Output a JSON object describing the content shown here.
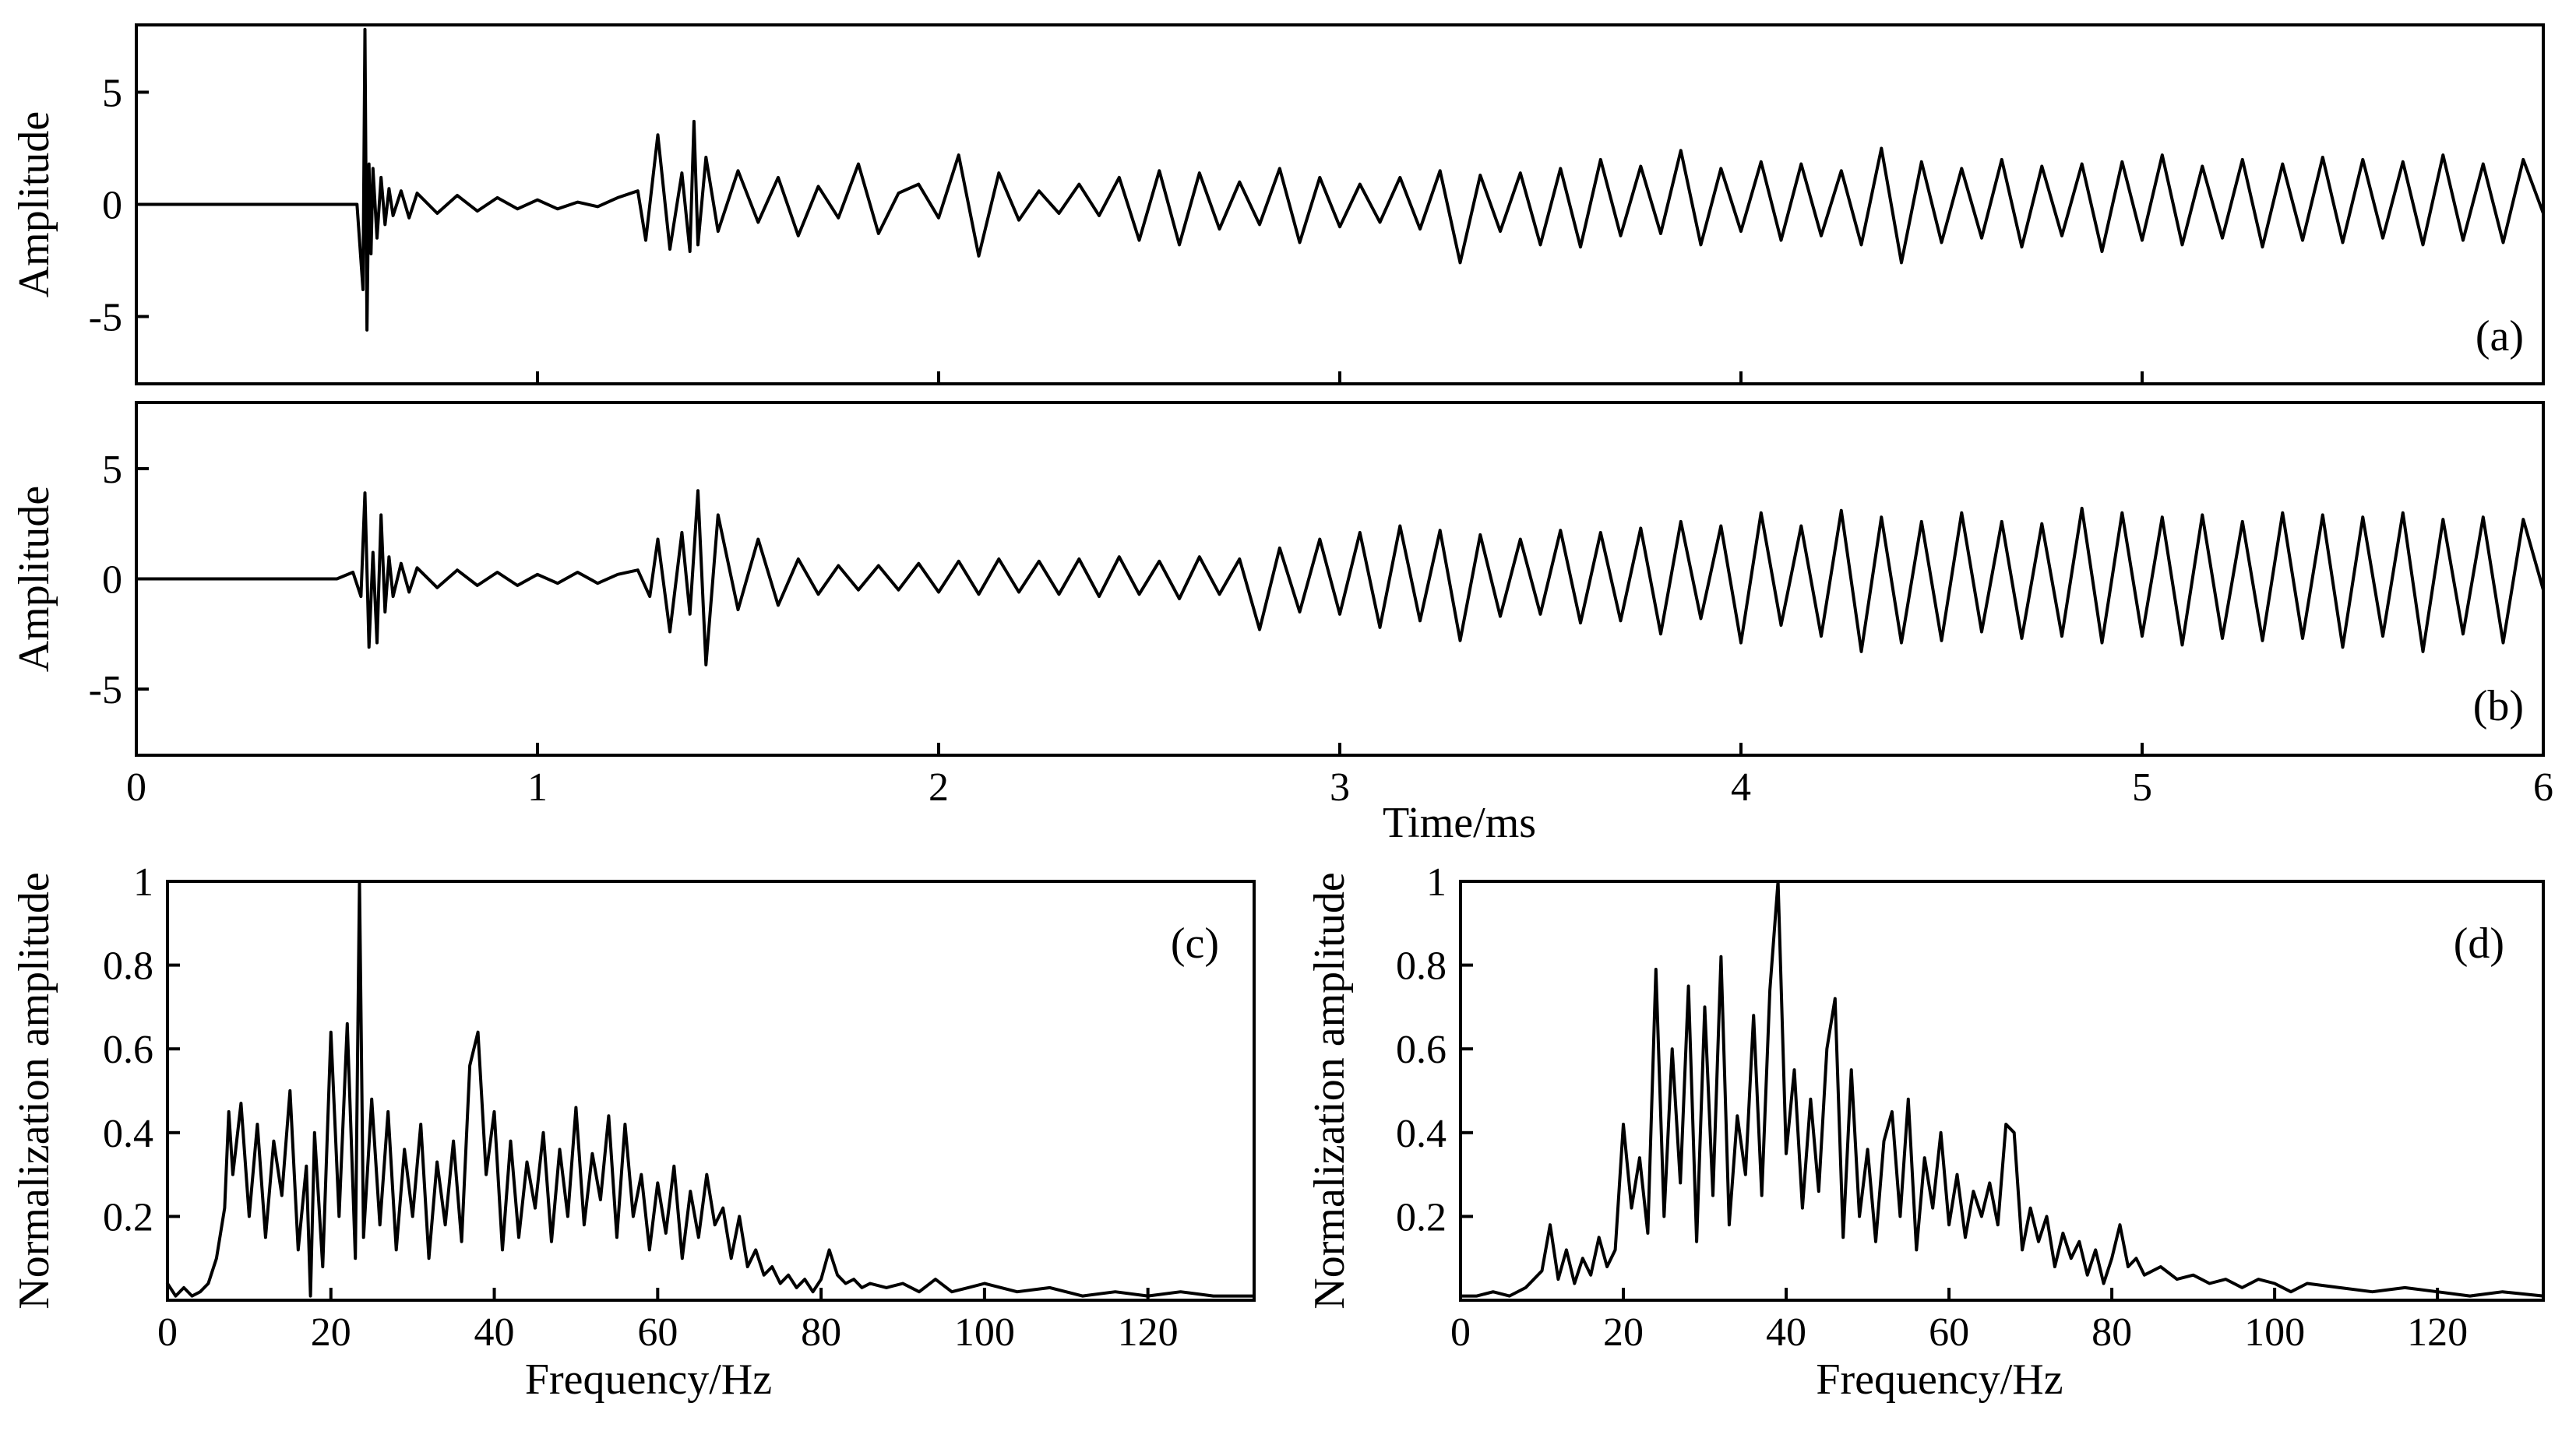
{
  "chart_data": [
    {
      "id": "a",
      "type": "line",
      "panel_label": "(a)",
      "ylabel": "Amplitude",
      "xlabel": "",
      "xlim": [
        0,
        6
      ],
      "ylim": [
        -8,
        8
      ],
      "x_ticks": [
        1,
        2,
        3,
        4,
        5
      ],
      "x_tick_labels": [],
      "y_ticks": [
        5,
        0,
        -5
      ],
      "y_tick_labels": [
        "5",
        "0",
        "-5"
      ],
      "legend": "none",
      "grid": false,
      "series": [
        {
          "x": [
            0.0,
            0.2,
            0.4,
            0.55,
            0.565,
            0.57,
            0.575,
            0.58,
            0.585,
            0.59,
            0.6,
            0.61,
            0.62,
            0.63,
            0.64,
            0.66,
            0.68,
            0.7,
            0.75,
            0.8,
            0.85,
            0.9,
            0.95,
            1.0,
            1.05,
            1.1,
            1.15,
            1.2,
            1.25,
            1.27,
            1.3,
            1.33,
            1.36,
            1.38,
            1.39,
            1.4,
            1.42,
            1.45,
            1.5,
            1.55,
            1.6,
            1.65,
            1.7,
            1.75,
            1.8,
            1.85,
            1.9,
            1.95,
            2.0,
            2.05,
            2.1,
            2.15,
            2.2,
            2.25,
            2.3,
            2.35,
            2.4,
            2.45,
            2.5,
            2.55,
            2.6,
            2.65,
            2.7,
            2.75,
            2.8,
            2.85,
            2.9,
            2.95,
            3.0,
            3.05,
            3.1,
            3.15,
            3.2,
            3.25,
            3.3,
            3.35,
            3.4,
            3.45,
            3.5,
            3.55,
            3.6,
            3.65,
            3.7,
            3.75,
            3.8,
            3.85,
            3.9,
            3.95,
            4.0,
            4.05,
            4.1,
            4.15,
            4.2,
            4.25,
            4.3,
            4.35,
            4.4,
            4.45,
            4.5,
            4.55,
            4.6,
            4.65,
            4.7,
            4.75,
            4.8,
            4.85,
            4.9,
            4.95,
            5.0,
            5.05,
            5.1,
            5.15,
            5.2,
            5.25,
            5.3,
            5.35,
            5.4,
            5.45,
            5.5,
            5.55,
            5.6,
            5.65,
            5.7,
            5.75,
            5.8,
            5.85,
            5.9,
            5.95,
            6.0
          ],
          "y": [
            0,
            0,
            0,
            0,
            -3.8,
            7.8,
            -5.6,
            1.8,
            -2.2,
            1.6,
            -1.5,
            1.2,
            -0.9,
            0.7,
            -0.5,
            0.6,
            -0.6,
            0.5,
            -0.4,
            0.4,
            -0.3,
            0.3,
            -0.2,
            0.2,
            -0.2,
            0.1,
            -0.1,
            0.3,
            0.6,
            -1.6,
            3.1,
            -2.0,
            1.4,
            -2.1,
            3.7,
            -1.8,
            2.1,
            -1.2,
            1.5,
            -0.8,
            1.2,
            -1.4,
            0.8,
            -0.6,
            1.8,
            -1.3,
            0.5,
            0.9,
            -0.6,
            2.2,
            -2.3,
            1.4,
            -0.7,
            0.6,
            -0.4,
            0.9,
            -0.5,
            1.2,
            -1.6,
            1.5,
            -1.8,
            1.4,
            -1.1,
            1.0,
            -0.9,
            1.6,
            -1.7,
            1.2,
            -1.0,
            0.9,
            -0.8,
            1.2,
            -1.1,
            1.5,
            -2.6,
            1.3,
            -1.2,
            1.4,
            -1.8,
            1.6,
            -1.9,
            2.0,
            -1.4,
            1.7,
            -1.3,
            2.4,
            -1.8,
            1.6,
            -1.2,
            1.9,
            -1.6,
            1.8,
            -1.4,
            1.5,
            -1.8,
            2.5,
            -2.6,
            1.9,
            -1.7,
            1.6,
            -1.5,
            2.0,
            -1.9,
            1.7,
            -1.4,
            1.8,
            -2.1,
            1.9,
            -1.6,
            2.2,
            -1.8,
            1.7,
            -1.5,
            2.0,
            -1.9,
            1.8,
            -1.6,
            2.1,
            -1.7,
            2.0,
            -1.5,
            1.9,
            -1.8,
            2.2,
            -1.6,
            1.8,
            -1.7,
            2.0,
            -0.4
          ]
        }
      ]
    },
    {
      "id": "b",
      "type": "line",
      "panel_label": "(b)",
      "ylabel": "Amplitude",
      "xlabel": "Time/ms",
      "xlim": [
        0,
        6
      ],
      "ylim": [
        -8,
        8
      ],
      "x_ticks": [
        0,
        1,
        2,
        3,
        4,
        5,
        6
      ],
      "x_tick_labels": [
        "0",
        "1",
        "2",
        "3",
        "4",
        "5",
        "6"
      ],
      "y_ticks": [
        5,
        0,
        -5
      ],
      "y_tick_labels": [
        "5",
        "0",
        "-5"
      ],
      "legend": "none",
      "grid": false,
      "series": [
        {
          "x": [
            0.0,
            0.2,
            0.4,
            0.5,
            0.54,
            0.56,
            0.57,
            0.58,
            0.59,
            0.6,
            0.61,
            0.62,
            0.63,
            0.64,
            0.66,
            0.68,
            0.7,
            0.75,
            0.8,
            0.85,
            0.9,
            0.95,
            1.0,
            1.05,
            1.1,
            1.15,
            1.2,
            1.25,
            1.28,
            1.3,
            1.33,
            1.36,
            1.38,
            1.4,
            1.42,
            1.45,
            1.5,
            1.55,
            1.6,
            1.65,
            1.7,
            1.75,
            1.8,
            1.85,
            1.9,
            1.95,
            2.0,
            2.05,
            2.1,
            2.15,
            2.2,
            2.25,
            2.3,
            2.35,
            2.4,
            2.45,
            2.5,
            2.55,
            2.6,
            2.65,
            2.7,
            2.75,
            2.8,
            2.85,
            2.9,
            2.95,
            3.0,
            3.05,
            3.1,
            3.15,
            3.2,
            3.25,
            3.3,
            3.35,
            3.4,
            3.45,
            3.5,
            3.55,
            3.6,
            3.65,
            3.7,
            3.75,
            3.8,
            3.85,
            3.9,
            3.95,
            4.0,
            4.05,
            4.1,
            4.15,
            4.2,
            4.25,
            4.3,
            4.35,
            4.4,
            4.45,
            4.5,
            4.55,
            4.6,
            4.65,
            4.7,
            4.75,
            4.8,
            4.85,
            4.9,
            4.95,
            5.0,
            5.05,
            5.1,
            5.15,
            5.2,
            5.25,
            5.3,
            5.35,
            5.4,
            5.45,
            5.5,
            5.55,
            5.6,
            5.65,
            5.7,
            5.75,
            5.8,
            5.85,
            5.9,
            5.95,
            6.0
          ],
          "y": [
            0,
            0,
            0,
            0,
            0.3,
            -0.8,
            3.9,
            -3.1,
            1.2,
            -2.9,
            2.9,
            -1.5,
            1.0,
            -0.8,
            0.7,
            -0.6,
            0.5,
            -0.4,
            0.4,
            -0.3,
            0.3,
            -0.3,
            0.2,
            -0.2,
            0.3,
            -0.2,
            0.2,
            0.4,
            -0.8,
            1.8,
            -2.4,
            2.1,
            -1.6,
            4.0,
            -3.9,
            2.9,
            -1.4,
            1.8,
            -1.2,
            0.9,
            -0.7,
            0.6,
            -0.5,
            0.6,
            -0.5,
            0.7,
            -0.6,
            0.8,
            -0.7,
            0.9,
            -0.6,
            0.8,
            -0.7,
            0.9,
            -0.8,
            1.0,
            -0.7,
            0.8,
            -0.9,
            1.0,
            -0.7,
            0.9,
            -2.3,
            1.4,
            -1.5,
            1.8,
            -1.6,
            2.1,
            -2.2,
            2.4,
            -1.9,
            2.2,
            -2.8,
            2.0,
            -1.7,
            1.8,
            -1.6,
            2.2,
            -2.0,
            2.1,
            -1.9,
            2.3,
            -2.5,
            2.6,
            -1.8,
            2.4,
            -2.9,
            3.0,
            -2.1,
            2.4,
            -2.6,
            3.1,
            -3.3,
            2.8,
            -2.9,
            2.6,
            -2.8,
            3.0,
            -2.4,
            2.6,
            -2.7,
            2.5,
            -2.6,
            3.2,
            -2.9,
            3.0,
            -2.6,
            2.8,
            -3.0,
            2.9,
            -2.7,
            2.6,
            -2.8,
            3.0,
            -2.7,
            2.9,
            -3.1,
            2.8,
            -2.6,
            3.0,
            -3.3,
            2.7,
            -2.5,
            2.8,
            -2.9,
            2.7,
            -0.5
          ]
        }
      ]
    },
    {
      "id": "c",
      "type": "line",
      "panel_label": "(c)",
      "xlabel": "Frequency/Hz",
      "ylabel": "Normalization amplitude",
      "xlim": [
        0,
        133
      ],
      "ylim": [
        0,
        1
      ],
      "x_ticks": [
        0,
        20,
        40,
        60,
        80,
        100,
        120
      ],
      "x_tick_labels": [
        "0",
        "20",
        "40",
        "60",
        "80",
        "100",
        "120"
      ],
      "y_ticks": [
        0.2,
        0.4,
        0.6,
        0.8,
        1
      ],
      "y_tick_labels": [
        "0.2",
        "0.4",
        "0.6",
        "0.8",
        "1"
      ],
      "legend": "none",
      "grid": false,
      "series": [
        {
          "x": [
            0,
            1,
            2,
            3,
            4,
            5,
            6,
            7,
            7.5,
            8,
            9,
            10,
            11,
            12,
            13,
            14,
            15,
            16,
            17,
            17.5,
            18,
            19,
            20,
            21,
            22,
            23,
            23.5,
            24,
            25,
            26,
            27,
            28,
            29,
            30,
            31,
            32,
            33,
            34,
            35,
            36,
            37,
            38,
            39,
            40,
            41,
            42,
            43,
            44,
            45,
            46,
            47,
            48,
            49,
            50,
            51,
            52,
            53,
            54,
            55,
            56,
            57,
            58,
            59,
            60,
            61,
            62,
            63,
            64,
            65,
            66,
            67,
            68,
            69,
            70,
            71,
            72,
            73,
            74,
            75,
            76,
            77,
            78,
            79,
            80,
            81,
            82,
            83,
            84,
            85,
            86,
            88,
            90,
            92,
            94,
            96,
            98,
            100,
            104,
            108,
            112,
            116,
            120,
            124,
            128,
            133
          ],
          "y": [
            0.04,
            0.01,
            0.03,
            0.01,
            0.02,
            0.04,
            0.1,
            0.22,
            0.45,
            0.3,
            0.47,
            0.2,
            0.42,
            0.15,
            0.38,
            0.25,
            0.5,
            0.12,
            0.32,
            0.01,
            0.4,
            0.08,
            0.64,
            0.2,
            0.66,
            0.1,
            1.0,
            0.15,
            0.48,
            0.18,
            0.45,
            0.12,
            0.36,
            0.2,
            0.42,
            0.1,
            0.33,
            0.18,
            0.38,
            0.14,
            0.56,
            0.64,
            0.3,
            0.45,
            0.12,
            0.38,
            0.15,
            0.33,
            0.22,
            0.4,
            0.14,
            0.36,
            0.2,
            0.46,
            0.18,
            0.35,
            0.24,
            0.44,
            0.15,
            0.42,
            0.2,
            0.3,
            0.12,
            0.28,
            0.16,
            0.32,
            0.1,
            0.26,
            0.15,
            0.3,
            0.18,
            0.22,
            0.1,
            0.2,
            0.08,
            0.12,
            0.06,
            0.08,
            0.04,
            0.06,
            0.03,
            0.05,
            0.02,
            0.05,
            0.12,
            0.06,
            0.04,
            0.05,
            0.03,
            0.04,
            0.03,
            0.04,
            0.02,
            0.05,
            0.02,
            0.03,
            0.04,
            0.02,
            0.03,
            0.01,
            0.02,
            0.01,
            0.02,
            0.01,
            0.01
          ]
        }
      ]
    },
    {
      "id": "d",
      "type": "line",
      "panel_label": "(d)",
      "xlabel": "Frequency/Hz",
      "ylabel": "Normalization amplitude",
      "xlim": [
        0,
        133
      ],
      "ylim": [
        0,
        1
      ],
      "x_ticks": [
        0,
        20,
        40,
        60,
        80,
        100,
        120
      ],
      "x_tick_labels": [
        "0",
        "20",
        "40",
        "60",
        "80",
        "100",
        "120"
      ],
      "y_ticks": [
        0.2,
        0.4,
        0.6,
        0.8,
        1
      ],
      "y_tick_labels": [
        "0.2",
        "0.4",
        "0.6",
        "0.8",
        "1"
      ],
      "legend": "none",
      "grid": false,
      "series": [
        {
          "x": [
            0,
            2,
            4,
            6,
            8,
            10,
            11,
            12,
            13,
            14,
            15,
            16,
            17,
            18,
            19,
            20,
            21,
            22,
            23,
            24,
            25,
            26,
            27,
            28,
            29,
            30,
            31,
            32,
            33,
            34,
            35,
            36,
            37,
            38,
            39,
            40,
            41,
            42,
            43,
            44,
            45,
            46,
            47,
            48,
            49,
            50,
            51,
            52,
            53,
            54,
            55,
            56,
            57,
            58,
            59,
            60,
            61,
            62,
            63,
            64,
            65,
            66,
            67,
            68,
            69,
            70,
            71,
            72,
            73,
            74,
            75,
            76,
            77,
            78,
            79,
            80,
            81,
            82,
            83,
            84,
            86,
            88,
            90,
            92,
            94,
            96,
            98,
            100,
            102,
            104,
            108,
            112,
            116,
            120,
            124,
            128,
            133
          ],
          "y": [
            0.01,
            0.01,
            0.02,
            0.01,
            0.03,
            0.07,
            0.18,
            0.05,
            0.12,
            0.04,
            0.1,
            0.06,
            0.15,
            0.08,
            0.12,
            0.42,
            0.22,
            0.34,
            0.16,
            0.79,
            0.2,
            0.6,
            0.28,
            0.75,
            0.14,
            0.7,
            0.25,
            0.82,
            0.18,
            0.44,
            0.3,
            0.68,
            0.25,
            0.74,
            1.0,
            0.35,
            0.55,
            0.22,
            0.48,
            0.26,
            0.6,
            0.72,
            0.15,
            0.55,
            0.2,
            0.36,
            0.14,
            0.38,
            0.45,
            0.2,
            0.48,
            0.12,
            0.34,
            0.22,
            0.4,
            0.18,
            0.3,
            0.15,
            0.26,
            0.2,
            0.28,
            0.18,
            0.42,
            0.4,
            0.12,
            0.22,
            0.14,
            0.2,
            0.08,
            0.16,
            0.1,
            0.14,
            0.06,
            0.12,
            0.04,
            0.1,
            0.18,
            0.08,
            0.1,
            0.06,
            0.08,
            0.05,
            0.06,
            0.04,
            0.05,
            0.03,
            0.05,
            0.04,
            0.02,
            0.04,
            0.03,
            0.02,
            0.03,
            0.02,
            0.01,
            0.02,
            0.01
          ]
        }
      ]
    }
  ]
}
